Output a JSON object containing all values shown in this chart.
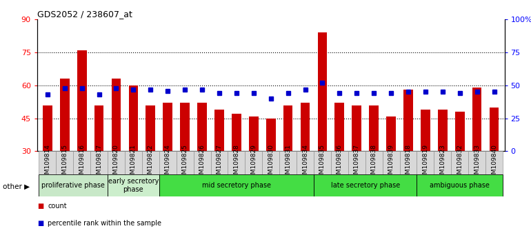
{
  "title": "GDS2052 / 238607_at",
  "categories": [
    "GSM109814",
    "GSM109815",
    "GSM109816",
    "GSM109817",
    "GSM109820",
    "GSM109821",
    "GSM109822",
    "GSM109824",
    "GSM109825",
    "GSM109826",
    "GSM109827",
    "GSM109828",
    "GSM109829",
    "GSM109830",
    "GSM109831",
    "GSM109834",
    "GSM109835",
    "GSM109836",
    "GSM109837",
    "GSM109838",
    "GSM109839",
    "GSM109818",
    "GSM109819",
    "GSM109823",
    "GSM109832",
    "GSM109833",
    "GSM109840"
  ],
  "red_values": [
    51,
    63,
    76,
    51,
    63,
    60,
    51,
    52,
    52,
    52,
    49,
    47,
    46,
    45,
    51,
    52,
    84,
    52,
    51,
    51,
    46,
    58,
    49,
    49,
    48,
    59,
    50
  ],
  "blue_values_pct": [
    43,
    48,
    48,
    43,
    48,
    47,
    47,
    46,
    47,
    47,
    44,
    44,
    44,
    40,
    44,
    47,
    52,
    44,
    44,
    44,
    44,
    45,
    45,
    45,
    44,
    45,
    45
  ],
  "group_defs": [
    {
      "label": "proliferative phase",
      "start": 0,
      "end": 4,
      "color": "#cceecc"
    },
    {
      "label": "early secretory\nphase",
      "start": 4,
      "end": 7,
      "color": "#cceecc"
    },
    {
      "label": "mid secretory phase",
      "start": 7,
      "end": 16,
      "color": "#44cc44"
    },
    {
      "label": "late secretory phase",
      "start": 16,
      "end": 22,
      "color": "#44cc44"
    },
    {
      "label": "ambiguous phase",
      "start": 22,
      "end": 27,
      "color": "#44cc44"
    }
  ],
  "ylim_left": [
    30,
    90
  ],
  "ylim_right": [
    0,
    100
  ],
  "yticks_left": [
    30,
    45,
    60,
    75,
    90
  ],
  "yticks_right": [
    0,
    25,
    50,
    75,
    100
  ],
  "bar_color": "#cc0000",
  "dot_color": "#0000cc",
  "background_color": "#ffffff",
  "bar_width": 0.55,
  "xticklabel_bg": "#d8d8d8"
}
